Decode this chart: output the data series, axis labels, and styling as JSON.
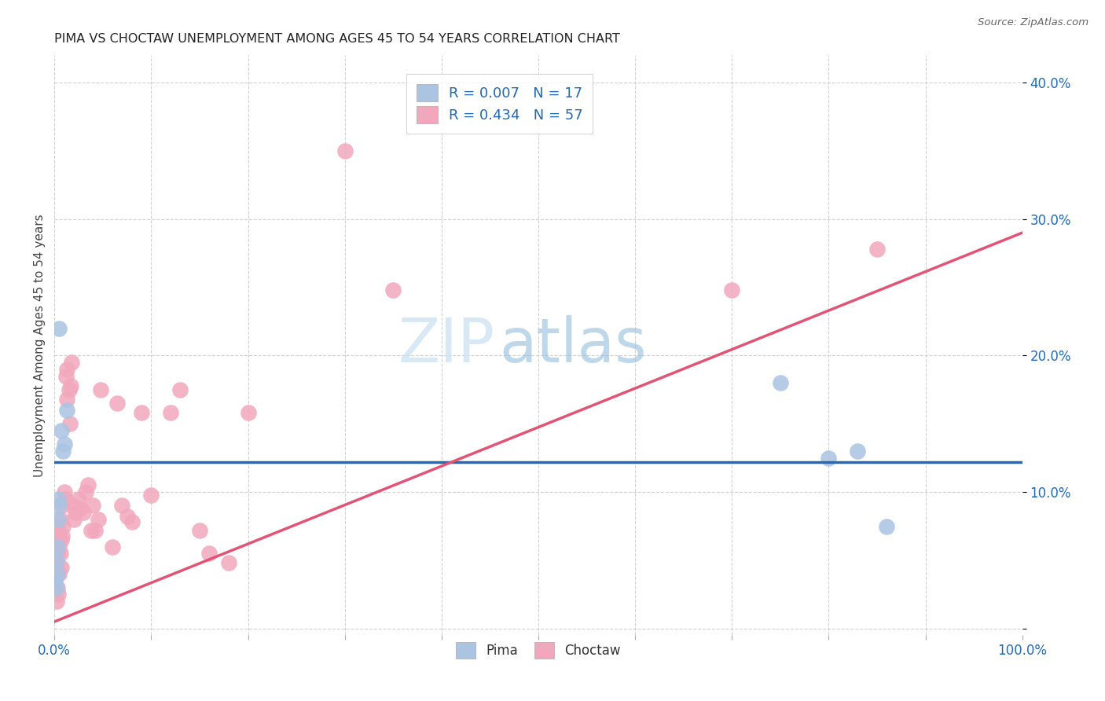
{
  "title": "PIMA VS CHOCTAW UNEMPLOYMENT AMONG AGES 45 TO 54 YEARS CORRELATION CHART",
  "source": "Source: ZipAtlas.com",
  "xlabel": "",
  "ylabel": "Unemployment Among Ages 45 to 54 years",
  "xlim": [
    0,
    1.0
  ],
  "ylim": [
    -0.005,
    0.42
  ],
  "xticks": [
    0.0,
    0.1,
    0.2,
    0.3,
    0.4,
    0.5,
    0.6,
    0.7,
    0.8,
    0.9,
    1.0
  ],
  "xticklabels": [
    "0.0%",
    "",
    "",
    "",
    "",
    "",
    "",
    "",
    "",
    "",
    "100.0%"
  ],
  "yticks": [
    0.0,
    0.1,
    0.2,
    0.3,
    0.4
  ],
  "yticklabels": [
    "",
    "10.0%",
    "20.0%",
    "30.0%",
    "40.0%"
  ],
  "pima_color": "#aac4e2",
  "choctaw_color": "#f2a8bc",
  "pima_line_color": "#2469b3",
  "choctaw_line_color": "#e05575",
  "legend_text_color": "#2469b3",
  "pima_R": 0.007,
  "pima_N": 17,
  "choctaw_R": 0.434,
  "choctaw_N": 57,
  "watermark_zip": "ZIP",
  "watermark_atlas": "atlas",
  "background_color": "#ffffff",
  "grid_color": "#cccccc",
  "pima_x": [
    0.001,
    0.002,
    0.002,
    0.003,
    0.003,
    0.004,
    0.004,
    0.005,
    0.005,
    0.007,
    0.009,
    0.01,
    0.013,
    0.75,
    0.8,
    0.83,
    0.86
  ],
  "pima_y": [
    0.035,
    0.05,
    0.03,
    0.06,
    0.04,
    0.095,
    0.08,
    0.22,
    0.09,
    0.145,
    0.13,
    0.135,
    0.16,
    0.18,
    0.125,
    0.13,
    0.075
  ],
  "choctaw_x": [
    0.001,
    0.002,
    0.002,
    0.003,
    0.003,
    0.003,
    0.003,
    0.004,
    0.004,
    0.005,
    0.005,
    0.006,
    0.006,
    0.007,
    0.007,
    0.008,
    0.008,
    0.009,
    0.01,
    0.011,
    0.012,
    0.013,
    0.013,
    0.015,
    0.016,
    0.017,
    0.018,
    0.019,
    0.02,
    0.022,
    0.025,
    0.027,
    0.03,
    0.032,
    0.035,
    0.038,
    0.04,
    0.042,
    0.045,
    0.048,
    0.06,
    0.065,
    0.07,
    0.075,
    0.08,
    0.09,
    0.1,
    0.12,
    0.13,
    0.15,
    0.16,
    0.18,
    0.2,
    0.3,
    0.35,
    0.7,
    0.85
  ],
  "choctaw_y": [
    0.028,
    0.06,
    0.02,
    0.075,
    0.055,
    0.045,
    0.03,
    0.068,
    0.025,
    0.06,
    0.04,
    0.08,
    0.055,
    0.065,
    0.045,
    0.09,
    0.068,
    0.075,
    0.1,
    0.095,
    0.185,
    0.19,
    0.168,
    0.175,
    0.15,
    0.178,
    0.195,
    0.09,
    0.08,
    0.085,
    0.095,
    0.088,
    0.085,
    0.1,
    0.105,
    0.072,
    0.09,
    0.072,
    0.08,
    0.175,
    0.06,
    0.165,
    0.09,
    0.082,
    0.078,
    0.158,
    0.098,
    0.158,
    0.175,
    0.072,
    0.055,
    0.048,
    0.158,
    0.35,
    0.248,
    0.248,
    0.278
  ],
  "pima_line_x": [
    0.0,
    1.0
  ],
  "pima_line_y": [
    0.122,
    0.122
  ],
  "choctaw_line_x": [
    0.0,
    1.0
  ],
  "choctaw_line_y": [
    0.005,
    0.29
  ]
}
